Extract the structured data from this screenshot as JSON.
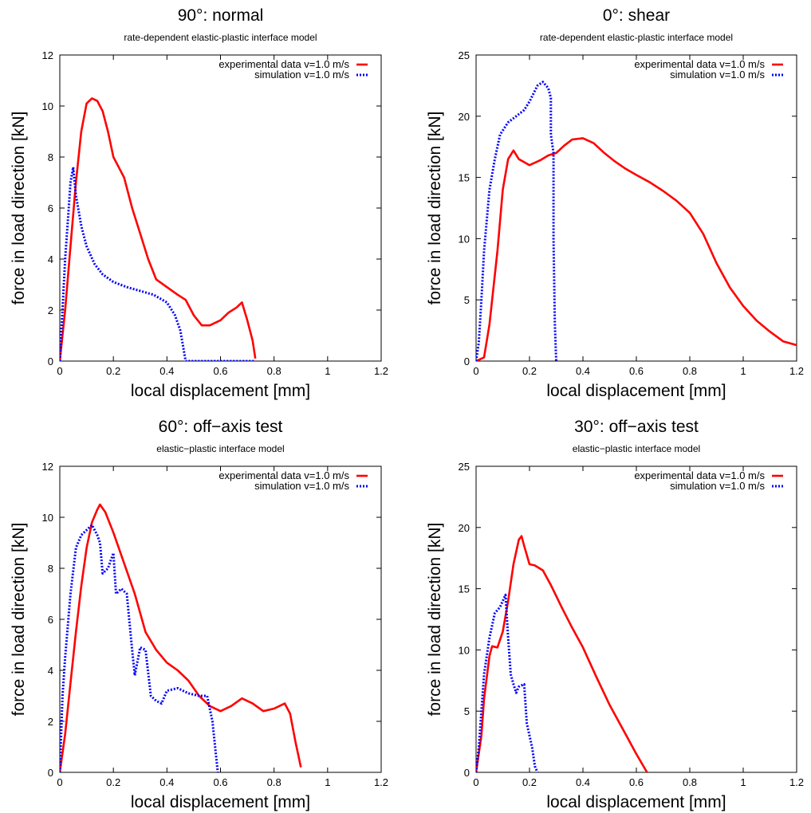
{
  "chart_data": [
    {
      "type": "line",
      "title": "90°: normal",
      "subtitle": "rate-dependent elastic-plastic interface model",
      "xlabel": "local displacement [mm]",
      "ylabel": "force in load direction [kN]",
      "xlim": [
        0,
        1.2
      ],
      "ylim": [
        0,
        12
      ],
      "xticks": [
        "0",
        "0.2",
        "0.4",
        "0.6",
        "0.8",
        "1",
        "1.2"
      ],
      "yticks": [
        "0",
        "2",
        "4",
        "6",
        "8",
        "10",
        "12"
      ],
      "legend_position": "top-right",
      "grid": false,
      "series": [
        {
          "name": "experimental data v=1.0 m/s",
          "color": "#ff0000",
          "style": "solid",
          "points": [
            [
              0,
              0
            ],
            [
              0.02,
              2.0
            ],
            [
              0.04,
              4.5
            ],
            [
              0.06,
              7.0
            ],
            [
              0.08,
              9.0
            ],
            [
              0.1,
              10.1
            ],
            [
              0.12,
              10.3
            ],
            [
              0.14,
              10.2
            ],
            [
              0.16,
              9.8
            ],
            [
              0.18,
              9.0
            ],
            [
              0.2,
              8.0
            ],
            [
              0.22,
              7.6
            ],
            [
              0.24,
              7.2
            ],
            [
              0.27,
              6.0
            ],
            [
              0.3,
              5.0
            ],
            [
              0.33,
              4.0
            ],
            [
              0.36,
              3.2
            ],
            [
              0.4,
              2.9
            ],
            [
              0.44,
              2.6
            ],
            [
              0.47,
              2.4
            ],
            [
              0.5,
              1.8
            ],
            [
              0.53,
              1.4
            ],
            [
              0.56,
              1.4
            ],
            [
              0.6,
              1.6
            ],
            [
              0.63,
              1.9
            ],
            [
              0.66,
              2.1
            ],
            [
              0.68,
              2.3
            ],
            [
              0.7,
              1.6
            ],
            [
              0.72,
              0.8
            ],
            [
              0.73,
              0.1
            ]
          ]
        },
        {
          "name": "simulation v=1.0 m/s",
          "color": "#0000ff",
          "style": "dotted",
          "points": [
            [
              0,
              0
            ],
            [
              0.01,
              2.0
            ],
            [
              0.02,
              4.0
            ],
            [
              0.03,
              5.5
            ],
            [
              0.04,
              7.0
            ],
            [
              0.05,
              7.6
            ],
            [
              0.06,
              6.5
            ],
            [
              0.08,
              5.3
            ],
            [
              0.1,
              4.5
            ],
            [
              0.13,
              3.8
            ],
            [
              0.16,
              3.4
            ],
            [
              0.2,
              3.1
            ],
            [
              0.25,
              2.9
            ],
            [
              0.3,
              2.75
            ],
            [
              0.35,
              2.6
            ],
            [
              0.4,
              2.3
            ],
            [
              0.43,
              1.8
            ],
            [
              0.45,
              1.2
            ],
            [
              0.46,
              0.6
            ],
            [
              0.47,
              0
            ],
            [
              0.73,
              0
            ]
          ]
        }
      ]
    },
    {
      "type": "line",
      "title": "0°: shear",
      "subtitle": "rate-dependent elastic-plastic interface model",
      "xlabel": "local displacement [mm]",
      "ylabel": "force in load direction [kN]",
      "xlim": [
        0,
        1.2
      ],
      "ylim": [
        0,
        25
      ],
      "xticks": [
        "0",
        "0.2",
        "0.4",
        "0.6",
        "0.8",
        "1",
        "1.2"
      ],
      "yticks": [
        "0",
        "5",
        "10",
        "15",
        "20",
        "25"
      ],
      "legend_position": "top-right",
      "grid": false,
      "series": [
        {
          "name": "experimental data v=1.0 m/s",
          "color": "#ff0000",
          "style": "solid",
          "points": [
            [
              0,
              0
            ],
            [
              0.03,
              0.3
            ],
            [
              0.05,
              3.0
            ],
            [
              0.08,
              9.0
            ],
            [
              0.1,
              14.0
            ],
            [
              0.12,
              16.5
            ],
            [
              0.14,
              17.2
            ],
            [
              0.16,
              16.5
            ],
            [
              0.2,
              16.0
            ],
            [
              0.24,
              16.4
            ],
            [
              0.27,
              16.8
            ],
            [
              0.3,
              17.0
            ],
            [
              0.33,
              17.6
            ],
            [
              0.36,
              18.1
            ],
            [
              0.4,
              18.2
            ],
            [
              0.44,
              17.8
            ],
            [
              0.48,
              17.0
            ],
            [
              0.52,
              16.3
            ],
            [
              0.56,
              15.7
            ],
            [
              0.6,
              15.2
            ],
            [
              0.65,
              14.6
            ],
            [
              0.7,
              13.9
            ],
            [
              0.75,
              13.1
            ],
            [
              0.8,
              12.1
            ],
            [
              0.85,
              10.4
            ],
            [
              0.9,
              8.0
            ],
            [
              0.95,
              6.0
            ],
            [
              1.0,
              4.5
            ],
            [
              1.05,
              3.3
            ],
            [
              1.1,
              2.4
            ],
            [
              1.15,
              1.6
            ],
            [
              1.2,
              1.3
            ]
          ]
        },
        {
          "name": "simulation v=1.0 m/s",
          "color": "#0000ff",
          "style": "dotted",
          "points": [
            [
              0,
              0
            ],
            [
              0.01,
              1.5
            ],
            [
              0.02,
              5.0
            ],
            [
              0.03,
              9.0
            ],
            [
              0.05,
              14.0
            ],
            [
              0.07,
              16.5
            ],
            [
              0.09,
              18.5
            ],
            [
              0.12,
              19.5
            ],
            [
              0.15,
              20.0
            ],
            [
              0.18,
              20.5
            ],
            [
              0.2,
              21.2
            ],
            [
              0.23,
              22.5
            ],
            [
              0.25,
              22.8
            ],
            [
              0.27,
              22.3
            ],
            [
              0.28,
              21.5
            ],
            [
              0.28,
              18.5
            ],
            [
              0.29,
              17.0
            ],
            [
              0.29,
              10.0
            ],
            [
              0.295,
              3.0
            ],
            [
              0.3,
              0
            ]
          ]
        }
      ]
    },
    {
      "type": "line",
      "title": "60°: off−axis test",
      "subtitle": "elastic−plastic interface model",
      "xlabel": "local displacement [mm]",
      "ylabel": "force in load direction [kN]",
      "xlim": [
        0,
        1.2
      ],
      "ylim": [
        0,
        12
      ],
      "xticks": [
        "0",
        "0.2",
        "0.4",
        "0.6",
        "0.8",
        "1",
        "1.2"
      ],
      "yticks": [
        "0",
        "2",
        "4",
        "6",
        "8",
        "10",
        "12"
      ],
      "legend_position": "top-right",
      "grid": false,
      "series": [
        {
          "name": "experimental data v=1.0 m/s",
          "color": "#ff0000",
          "style": "solid",
          "points": [
            [
              0,
              0
            ],
            [
              0.02,
              1.5
            ],
            [
              0.04,
              3.5
            ],
            [
              0.06,
              5.5
            ],
            [
              0.08,
              7.3
            ],
            [
              0.1,
              8.8
            ],
            [
              0.12,
              9.8
            ],
            [
              0.14,
              10.3
            ],
            [
              0.15,
              10.5
            ],
            [
              0.17,
              10.2
            ],
            [
              0.2,
              9.4
            ],
            [
              0.24,
              8.2
            ],
            [
              0.28,
              7.0
            ],
            [
              0.32,
              5.5
            ],
            [
              0.36,
              4.8
            ],
            [
              0.4,
              4.3
            ],
            [
              0.44,
              4.0
            ],
            [
              0.48,
              3.6
            ],
            [
              0.52,
              3.0
            ],
            [
              0.56,
              2.6
            ],
            [
              0.6,
              2.4
            ],
            [
              0.64,
              2.6
            ],
            [
              0.68,
              2.9
            ],
            [
              0.72,
              2.7
            ],
            [
              0.76,
              2.4
            ],
            [
              0.8,
              2.5
            ],
            [
              0.84,
              2.7
            ],
            [
              0.86,
              2.3
            ],
            [
              0.88,
              1.2
            ],
            [
              0.9,
              0.2
            ]
          ]
        },
        {
          "name": "simulation v=1.0 m/s",
          "color": "#0000ff",
          "style": "dotted",
          "points": [
            [
              0,
              0
            ],
            [
              0.01,
              3.0
            ],
            [
              0.02,
              4.5
            ],
            [
              0.04,
              7.0
            ],
            [
              0.06,
              8.8
            ],
            [
              0.08,
              9.3
            ],
            [
              0.1,
              9.5
            ],
            [
              0.12,
              9.7
            ],
            [
              0.14,
              9.3
            ],
            [
              0.15,
              9.0
            ],
            [
              0.16,
              7.8
            ],
            [
              0.18,
              8.0
            ],
            [
              0.2,
              8.6
            ],
            [
              0.21,
              7.0
            ],
            [
              0.23,
              7.2
            ],
            [
              0.25,
              7.0
            ],
            [
              0.27,
              4.8
            ],
            [
              0.28,
              3.8
            ],
            [
              0.3,
              4.9
            ],
            [
              0.32,
              4.8
            ],
            [
              0.34,
              3.0
            ],
            [
              0.36,
              2.8
            ],
            [
              0.38,
              2.7
            ],
            [
              0.4,
              3.2
            ],
            [
              0.44,
              3.3
            ],
            [
              0.48,
              3.1
            ],
            [
              0.52,
              3.0
            ],
            [
              0.55,
              3.0
            ],
            [
              0.57,
              2.0
            ],
            [
              0.59,
              0
            ]
          ]
        }
      ]
    },
    {
      "type": "line",
      "title": "30°: off−axis test",
      "subtitle": "elastic−plastic interface model",
      "xlabel": "local displacement [mm]",
      "ylabel": "force in load direction [kN]",
      "xlim": [
        0,
        1.2
      ],
      "ylim": [
        0,
        25
      ],
      "xticks": [
        "0",
        "0.2",
        "0.4",
        "0.6",
        "0.8",
        "1",
        "1.2"
      ],
      "yticks": [
        "0",
        "5",
        "10",
        "15",
        "20",
        "25"
      ],
      "legend_position": "top-right",
      "grid": false,
      "series": [
        {
          "name": "experimental data v=1.0 m/s",
          "color": "#ff0000",
          "style": "solid",
          "points": [
            [
              0,
              0
            ],
            [
              0.02,
              3.0
            ],
            [
              0.03,
              6.0
            ],
            [
              0.05,
              9.5
            ],
            [
              0.06,
              10.3
            ],
            [
              0.08,
              10.2
            ],
            [
              0.1,
              11.5
            ],
            [
              0.12,
              14.0
            ],
            [
              0.14,
              17.0
            ],
            [
              0.16,
              19.0
            ],
            [
              0.17,
              19.3
            ],
            [
              0.18,
              18.5
            ],
            [
              0.2,
              17.0
            ],
            [
              0.22,
              16.9
            ],
            [
              0.25,
              16.5
            ],
            [
              0.28,
              15.3
            ],
            [
              0.32,
              13.5
            ],
            [
              0.36,
              11.8
            ],
            [
              0.4,
              10.2
            ],
            [
              0.45,
              7.8
            ],
            [
              0.5,
              5.5
            ],
            [
              0.55,
              3.5
            ],
            [
              0.6,
              1.5
            ],
            [
              0.64,
              0
            ]
          ]
        },
        {
          "name": "simulation v=1.0 m/s",
          "color": "#0000ff",
          "style": "dotted",
          "points": [
            [
              0,
              0
            ],
            [
              0.01,
              2.0
            ],
            [
              0.02,
              5.0
            ],
            [
              0.03,
              8.0
            ],
            [
              0.05,
              11.0
            ],
            [
              0.07,
              13.0
            ],
            [
              0.09,
              13.5
            ],
            [
              0.11,
              14.5
            ],
            [
              0.12,
              11.0
            ],
            [
              0.13,
              8.0
            ],
            [
              0.14,
              7.2
            ],
            [
              0.15,
              6.5
            ],
            [
              0.16,
              7.0
            ],
            [
              0.18,
              7.2
            ],
            [
              0.19,
              4.0
            ],
            [
              0.2,
              3.0
            ],
            [
              0.21,
              2.0
            ],
            [
              0.22,
              0.5
            ],
            [
              0.23,
              0
            ]
          ]
        }
      ]
    }
  ]
}
